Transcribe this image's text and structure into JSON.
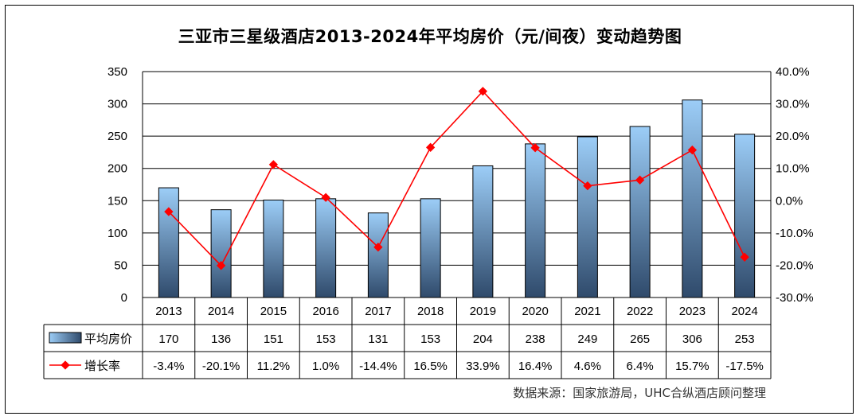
{
  "title": "三亚市三星级酒店2013-2024年平均房价（元/间夜）变动趋势图",
  "source": "数据来源：国家旅游局，UHC合纵酒店顾问整理",
  "colors": {
    "bar_top": "#9ccdf7",
    "bar_bottom": "#2f4a6b",
    "line": "#ff0000",
    "grid": "#000000"
  },
  "chart_data": {
    "type": "bar",
    "categories": [
      "2013",
      "2014",
      "2015",
      "2016",
      "2017",
      "2018",
      "2019",
      "2020",
      "2021",
      "2022",
      "2023",
      "2024"
    ],
    "series": [
      {
        "name": "平均房价",
        "type": "bar",
        "axis": "left",
        "values": [
          170,
          136,
          151,
          153,
          131,
          153,
          204,
          238,
          249,
          265,
          306,
          253
        ],
        "labels": [
          "170",
          "136",
          "151",
          "153",
          "131",
          "153",
          "204",
          "238",
          "249",
          "265",
          "306",
          "253"
        ]
      },
      {
        "name": "增长率",
        "type": "line",
        "axis": "right",
        "values": [
          -3.4,
          -20.1,
          11.2,
          1.0,
          -14.4,
          16.5,
          33.9,
          16.4,
          4.6,
          6.4,
          15.7,
          -17.5
        ],
        "labels": [
          "-3.4%",
          "-20.1%",
          "11.2%",
          "1.0%",
          "-14.4%",
          "16.5%",
          "33.9%",
          "16.4%",
          "4.6%",
          "6.4%",
          "15.7%",
          "-17.5%"
        ]
      }
    ],
    "ylim_left": [
      0,
      350
    ],
    "yticks_left": [
      "350",
      "300",
      "250",
      "200",
      "150",
      "100",
      "50",
      "0"
    ],
    "ylim_right": [
      -30,
      40
    ],
    "yticks_right": [
      "40.0%",
      "30.0%",
      "20.0%",
      "10.0%",
      "0.0%",
      "-10.0%",
      "-20.0%",
      "-30.0%"
    ],
    "grid": true,
    "legend": "data-table"
  }
}
